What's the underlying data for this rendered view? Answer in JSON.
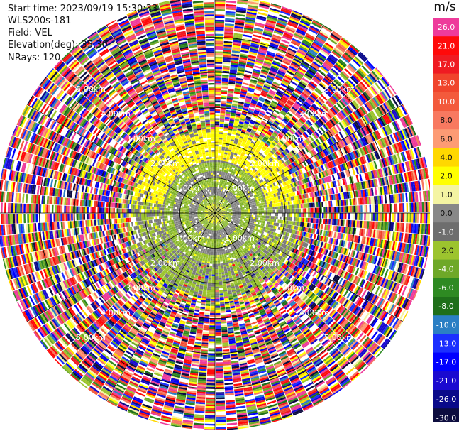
{
  "header": {
    "start_time": "Start time: 2023/09/19 15:30:33",
    "instrument": "WLS200s-181",
    "field": "Field: VEL",
    "elevation": "Elevation(deg): 35.30",
    "nrays": "NRays: 120"
  },
  "chart_data": {
    "type": "heatmap",
    "subtype": "ppi-polar",
    "field": "VEL",
    "units": "m/s",
    "n_rays": 120,
    "elevation_deg": 35.3,
    "range_ring_labels": [
      "1.00km",
      "2.00km",
      "3.00km",
      "4.00km",
      "5.00km"
    ],
    "range_rings_km": [
      1,
      2,
      3,
      4,
      5
    ],
    "max_range_km": 5.0,
    "colorbar": {
      "label": "m/s",
      "ticks": [
        "26.0",
        "21.0",
        "17.0",
        "13.0",
        "10.0",
        "8.0",
        "6.0",
        "4.0",
        "2.0",
        "1.0",
        "0.0",
        "-1.0",
        "-2.0",
        "-4.0",
        "-6.0",
        "-8.0",
        "-10.0",
        "-13.0",
        "-17.0",
        "-21.0",
        "-26.0",
        "-30.0"
      ],
      "colors": [
        "#ee3b9b",
        "#ff0a0a",
        "#ef1b22",
        "#f0442c",
        "#f35a3c",
        "#f87960",
        "#fd9b74",
        "#ffd800",
        "#ffff00",
        "#f4f4a2",
        "#888888",
        "#6e6e6e",
        "#9cc42e",
        "#6ea828",
        "#2e8a22",
        "#1f6f1a",
        "#2b7fc4",
        "#1b2fff",
        "#0000ff",
        "#1a0ad0",
        "#0a0a8a",
        "#0d0d3f"
      ]
    },
    "regions": [
      {
        "from_km": 0.0,
        "to_km": 0.3,
        "pattern": "yellow/green mix"
      },
      {
        "from_km": 0.3,
        "to_km": 1.5,
        "pattern": "gray and green (near 0 m/s)"
      },
      {
        "from_km": 1.5,
        "to_km": 2.4,
        "pattern": "yellow ring north, green-gray south"
      },
      {
        "from_km": 2.4,
        "to_km": 5.5,
        "pattern": "noisy multicolor"
      }
    ]
  }
}
